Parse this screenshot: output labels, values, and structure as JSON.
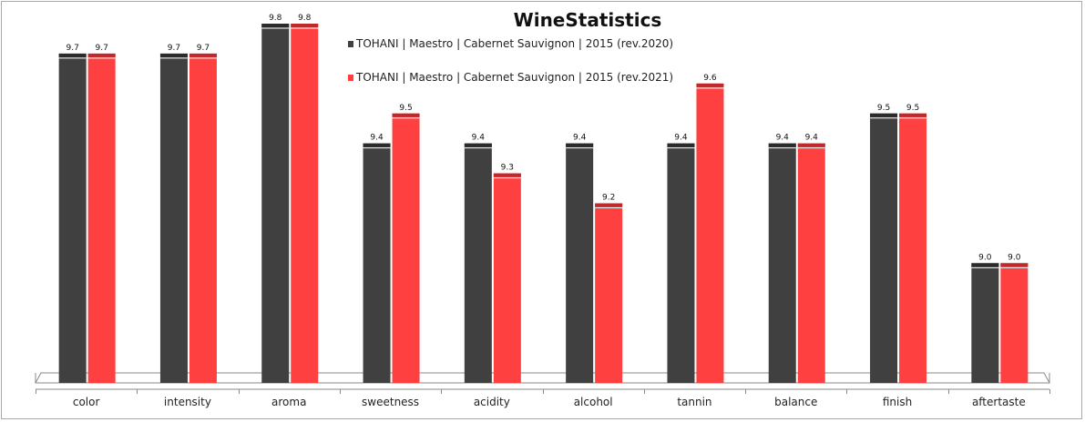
{
  "chart_data": {
    "type": "bar",
    "title": "WineStatistics",
    "categories": [
      "color",
      "intensity",
      "aroma",
      "sweetness",
      "acidity",
      "alcohol",
      "tannin",
      "balance",
      "finish",
      "aftertaste"
    ],
    "series": [
      {
        "name": "TOHANI | Maestro | Cabernet Sauvignon | 2015 (rev.2020)",
        "color": "#404040",
        "cap_color": "#2b2b2b",
        "values": [
          9.7,
          9.7,
          9.8,
          9.4,
          9.4,
          9.4,
          9.4,
          9.4,
          9.5,
          9.0
        ],
        "labels": [
          "9.7",
          "9.7",
          "9.8",
          "9.4",
          "9.4",
          "9.4",
          "9.4",
          "9.4",
          "9.5",
          "9.0"
        ]
      },
      {
        "name": "TOHANI | Maestro | Cabernet Sauvignon | 2015 (rev.2021)",
        "color": "#ff4040",
        "cap_color": "#c0282c",
        "values": [
          9.7,
          9.7,
          9.8,
          9.5,
          9.3,
          9.2,
          9.6,
          9.4,
          9.5,
          9.0
        ],
        "labels": [
          "9.7",
          "9.7",
          "9.8",
          "9.5",
          "9.3",
          "9.2",
          "9.6",
          "9.4",
          "9.5",
          "9.0"
        ]
      }
    ],
    "ylim": [
      8.6,
      9.8
    ],
    "grid": false,
    "legend_position": "top-center",
    "xlabel": "",
    "ylabel": ""
  }
}
